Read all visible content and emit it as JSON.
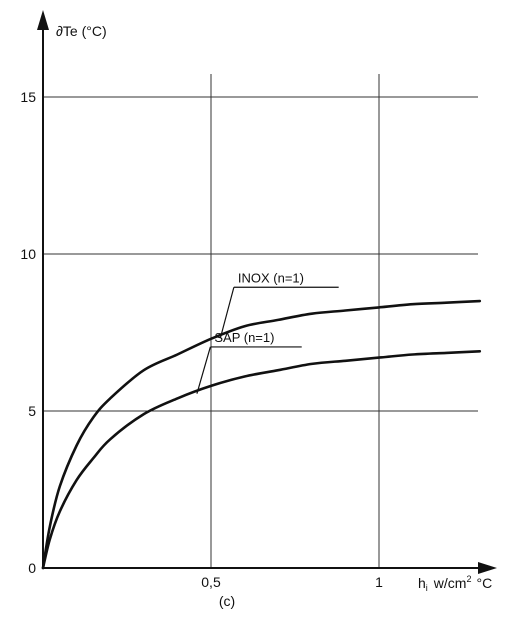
{
  "chart_data": {
    "type": "line",
    "xlabel": {
      "main": "h",
      "sub": "i",
      "unit": "w/cm",
      "sup": "2",
      "unit_tail": "°C"
    },
    "ylabel": "∂Te (°C)",
    "caption": "(c)",
    "xlim": [
      0,
      1.35
    ],
    "ylim": [
      0,
      17
    ],
    "x_ticks": [
      {
        "value": 0.5,
        "label": "0,5"
      },
      {
        "value": 1,
        "label": "1"
      }
    ],
    "y_ticks": [
      {
        "value": 0,
        "label": "0"
      },
      {
        "value": 5,
        "label": "5"
      },
      {
        "value": 10,
        "label": "10"
      },
      {
        "value": 15,
        "label": "15"
      }
    ],
    "grid": true,
    "series": [
      {
        "name": "INOX (n=1)",
        "x": [
          0,
          0.02,
          0.05,
          0.1,
          0.15,
          0.2,
          0.3,
          0.4,
          0.5,
          0.6,
          0.7,
          0.8,
          0.9,
          1.0,
          1.1,
          1.2,
          1.3
        ],
        "y": [
          0,
          1.3,
          2.6,
          3.9,
          4.8,
          5.4,
          6.3,
          6.8,
          7.3,
          7.7,
          7.9,
          8.1,
          8.2,
          8.3,
          8.4,
          8.45,
          8.5
        ]
      },
      {
        "name": "SAP (n=1)",
        "x": [
          0,
          0.02,
          0.05,
          0.1,
          0.15,
          0.2,
          0.3,
          0.4,
          0.5,
          0.6,
          0.7,
          0.8,
          0.9,
          1.0,
          1.1,
          1.2,
          1.3
        ],
        "y": [
          0,
          0.9,
          1.8,
          2.8,
          3.5,
          4.1,
          4.9,
          5.4,
          5.8,
          6.1,
          6.3,
          6.5,
          6.6,
          6.7,
          6.8,
          6.85,
          6.9
        ]
      }
    ]
  }
}
